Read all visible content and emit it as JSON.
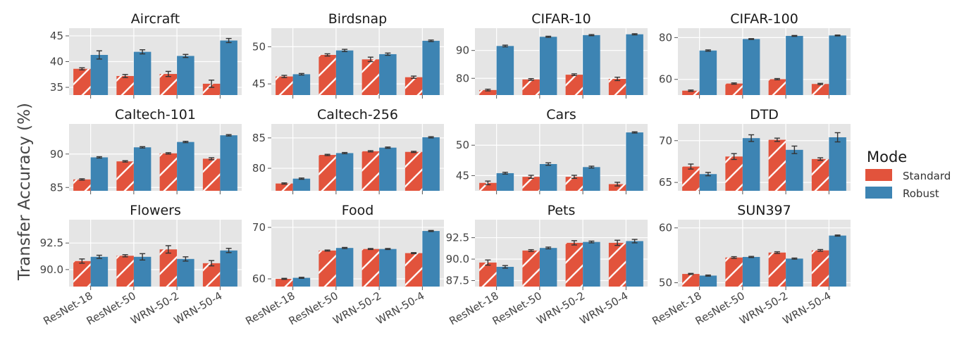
{
  "chart_data": {
    "type": "bar",
    "ylabel": "Transfer Accuracy (%)",
    "categories": [
      "ResNet-18",
      "ResNet-50",
      "WRN-50-2",
      "WRN-50-4"
    ],
    "legend": {
      "title": "Mode",
      "placement": "right",
      "entries": [
        "Standard",
        "Robust"
      ]
    },
    "colors": {
      "Standard": "#e2533c",
      "Robust": "#3d84b3",
      "background": "#e5e5e5",
      "grid": "#ffffff"
    },
    "grid": true,
    "panels": [
      {
        "title": "Aircraft",
        "ylim": [
          33.5,
          46.5
        ],
        "yticks": [
          "35",
          "40",
          "45"
        ],
        "yticks_values": [
          35,
          40,
          45
        ],
        "series": [
          {
            "name": "Standard",
            "values": [
              38.6,
              37.2,
              37.6,
              35.7
            ],
            "err": [
              0.2,
              0.3,
              0.5,
              0.7
            ]
          },
          {
            "name": "Robust",
            "values": [
              41.3,
              41.9,
              41.1,
              44.1
            ],
            "err": [
              0.8,
              0.4,
              0.3,
              0.4
            ]
          }
        ]
      },
      {
        "title": "Birdsnap",
        "ylim": [
          43.5,
          52.5
        ],
        "yticks": [
          "45",
          "50"
        ],
        "yticks_values": [
          45,
          50
        ],
        "series": [
          {
            "name": "Standard",
            "values": [
              46.0,
              48.9,
              48.3,
              45.9
            ],
            "err": [
              0.15,
              0.15,
              0.3,
              0.15
            ]
          },
          {
            "name": "Robust",
            "values": [
              46.3,
              49.5,
              49.0,
              50.8
            ],
            "err": [
              0.1,
              0.15,
              0.15,
              0.1
            ]
          }
        ]
      },
      {
        "title": "CIFAR-10",
        "ylim": [
          74,
          98
        ],
        "yticks": [
          "80",
          "90"
        ],
        "yticks_values": [
          80,
          90
        ],
        "series": [
          {
            "name": "Standard",
            "values": [
              75.8,
              79.6,
              81.3,
              79.8
            ],
            "err": [
              0.3,
              0.3,
              0.3,
              0.6
            ]
          },
          {
            "name": "Robust",
            "values": [
              91.6,
              94.9,
              95.5,
              95.8
            ],
            "err": [
              0.3,
              0.2,
              0.2,
              0.2
            ]
          }
        ]
      },
      {
        "title": "CIFAR-100",
        "ylim": [
          52.5,
          84.5
        ],
        "yticks": [
          "60",
          "80"
        ],
        "yticks_values": [
          60,
          80
        ],
        "series": [
          {
            "name": "Standard",
            "values": [
              54.6,
              58.0,
              60.1,
              57.8
            ],
            "err": [
              0.3,
              0.3,
              0.3,
              0.3
            ]
          },
          {
            "name": "Robust",
            "values": [
              73.8,
              79.3,
              80.8,
              81.0
            ],
            "err": [
              0.3,
              0.2,
              0.2,
              0.2
            ]
          }
        ]
      },
      {
        "title": "Caltech-101",
        "ylim": [
          84.5,
          94.5
        ],
        "yticks": [
          "85",
          "90"
        ],
        "yticks_values": [
          85,
          90
        ],
        "series": [
          {
            "name": "Standard",
            "values": [
              86.2,
              88.9,
              90.1,
              89.3
            ],
            "err": [
              0.1,
              0.1,
              0.1,
              0.15
            ]
          },
          {
            "name": "Robust",
            "values": [
              89.5,
              91.0,
              91.8,
              92.8
            ],
            "err": [
              0.1,
              0.1,
              0.1,
              0.1
            ]
          }
        ]
      },
      {
        "title": "Caltech-256",
        "ylim": [
          76.3,
          87.3
        ],
        "yticks": [
          "80",
          "85"
        ],
        "yticks_values": [
          80,
          85
        ],
        "series": [
          {
            "name": "Standard",
            "values": [
              77.5,
              82.2,
              82.8,
              82.7
            ],
            "err": [
              0.1,
              0.1,
              0.1,
              0.1
            ]
          },
          {
            "name": "Robust",
            "values": [
              78.3,
              82.5,
              83.4,
              85.1
            ],
            "err": [
              0.1,
              0.1,
              0.1,
              0.1
            ]
          }
        ]
      },
      {
        "title": "Cars",
        "ylim": [
          42.5,
          53.5
        ],
        "yticks": [
          "45",
          "50"
        ],
        "yticks_values": [
          45,
          50
        ],
        "series": [
          {
            "name": "Standard",
            "values": [
              43.8,
              44.8,
              44.8,
              43.6
            ],
            "err": [
              0.3,
              0.25,
              0.25,
              0.3
            ]
          },
          {
            "name": "Robust",
            "values": [
              45.4,
              46.9,
              46.4,
              52.1
            ],
            "err": [
              0.15,
              0.2,
              0.15,
              0.1
            ]
          }
        ]
      },
      {
        "title": "DTD",
        "ylim": [
          64,
          72
        ],
        "yticks": [
          "65",
          "70"
        ],
        "yticks_values": [
          65,
          70
        ],
        "series": [
          {
            "name": "Standard",
            "values": [
              66.9,
              68.1,
              70.1,
              67.8
            ],
            "err": [
              0.3,
              0.35,
              0.2,
              0.15
            ]
          },
          {
            "name": "Robust",
            "values": [
              66.0,
              70.3,
              68.9,
              70.4
            ],
            "err": [
              0.2,
              0.4,
              0.45,
              0.55
            ]
          }
        ]
      },
      {
        "title": "Flowers",
        "ylim": [
          88.4,
          94.7
        ],
        "yticks": [
          "90.0",
          "92.5"
        ],
        "yticks_values": [
          90.0,
          92.5
        ],
        "series": [
          {
            "name": "Standard",
            "values": [
              90.8,
              91.3,
              91.9,
              90.6
            ],
            "err": [
              0.2,
              0.1,
              0.35,
              0.25
            ]
          },
          {
            "name": "Robust",
            "values": [
              91.2,
              91.2,
              91.0,
              91.8
            ],
            "err": [
              0.15,
              0.3,
              0.2,
              0.2
            ]
          }
        ]
      },
      {
        "title": "Food",
        "ylim": [
          58.5,
          71.5
        ],
        "yticks": [
          "60",
          "70"
        ],
        "yticks_values": [
          60,
          70
        ],
        "series": [
          {
            "name": "Standard",
            "values": [
              60.0,
              65.5,
              65.8,
              65.0
            ],
            "err": [
              0.1,
              0.1,
              0.1,
              0.1
            ]
          },
          {
            "name": "Robust",
            "values": [
              60.2,
              66.0,
              65.8,
              69.3
            ],
            "err": [
              0.1,
              0.1,
              0.1,
              0.1
            ]
          }
        ]
      },
      {
        "title": "Pets",
        "ylim": [
          86.8,
          94.6
        ],
        "yticks": [
          "87.5",
          "90.0",
          "92.5"
        ],
        "yticks_values": [
          87.5,
          90.0,
          92.5
        ],
        "series": [
          {
            "name": "Standard",
            "values": [
              89.6,
              91.0,
              91.9,
              91.9
            ],
            "err": [
              0.3,
              0.1,
              0.25,
              0.3
            ]
          },
          {
            "name": "Robust",
            "values": [
              89.1,
              91.3,
              92.0,
              92.1
            ],
            "err": [
              0.15,
              0.1,
              0.1,
              0.2
            ]
          }
        ]
      },
      {
        "title": "SUN397",
        "ylim": [
          49.3,
          61.5
        ],
        "yticks": [
          "50",
          "60"
        ],
        "yticks_values": [
          50,
          60
        ],
        "series": [
          {
            "name": "Standard",
            "values": [
              51.6,
              54.6,
              55.5,
              55.9
            ],
            "err": [
              0.1,
              0.15,
              0.15,
              0.15
            ]
          },
          {
            "name": "Robust",
            "values": [
              51.3,
              54.7,
              54.4,
              58.6
            ],
            "err": [
              0.1,
              0.1,
              0.1,
              0.1
            ]
          }
        ]
      }
    ]
  }
}
